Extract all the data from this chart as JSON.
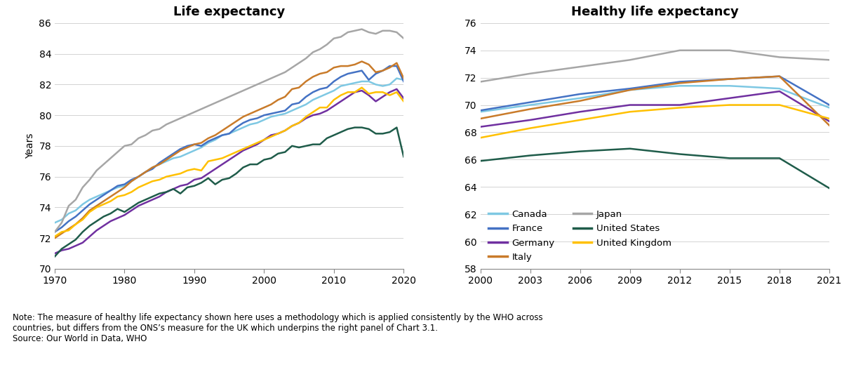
{
  "title_left": "Life expectancy",
  "title_right": "Healthy life expectancy",
  "ylabel_left": "Years",
  "note": "Note: The measure of healthy life expectancy shown here uses a methodology which is applied consistently by the WHO across\ncountries, but differs from the ONS’s measure for the UK which underpins the right panel of Chart 3.1.\nSource: Our World in Data, WHO",
  "colors": {
    "Canada": "#7ec8e3",
    "France": "#4472c4",
    "Germany": "#7030a0",
    "Italy": "#c97b2a",
    "Japan": "#a6a6a6",
    "United States": "#1f5c4a",
    "United Kingdom": "#ffc000"
  },
  "le_years": [
    1970,
    1971,
    1972,
    1973,
    1974,
    1975,
    1976,
    1977,
    1978,
    1979,
    1980,
    1981,
    1982,
    1983,
    1984,
    1985,
    1986,
    1987,
    1988,
    1989,
    1990,
    1991,
    1992,
    1993,
    1994,
    1995,
    1996,
    1997,
    1998,
    1999,
    2000,
    2001,
    2002,
    2003,
    2004,
    2005,
    2006,
    2007,
    2008,
    2009,
    2010,
    2011,
    2012,
    2013,
    2014,
    2015,
    2016,
    2017,
    2018,
    2019,
    2020
  ],
  "le_Canada": [
    73.0,
    73.2,
    73.6,
    73.8,
    74.2,
    74.5,
    74.7,
    74.9,
    75.1,
    75.3,
    75.4,
    75.7,
    76.0,
    76.3,
    76.6,
    76.8,
    77.0,
    77.2,
    77.3,
    77.5,
    77.7,
    77.9,
    78.2,
    78.4,
    78.7,
    78.8,
    79.0,
    79.2,
    79.4,
    79.5,
    79.7,
    79.9,
    80.0,
    80.1,
    80.3,
    80.5,
    80.7,
    81.0,
    81.2,
    81.4,
    81.6,
    81.9,
    82.0,
    82.1,
    82.2,
    82.2,
    82.0,
    81.9,
    82.0,
    82.4,
    82.3
  ],
  "le_France": [
    72.4,
    72.7,
    73.1,
    73.4,
    73.8,
    74.2,
    74.5,
    74.8,
    75.1,
    75.4,
    75.5,
    75.8,
    76.0,
    76.3,
    76.5,
    76.9,
    77.2,
    77.5,
    77.8,
    78.0,
    78.1,
    78.0,
    78.3,
    78.5,
    78.7,
    78.8,
    79.2,
    79.5,
    79.7,
    79.8,
    80.0,
    80.1,
    80.2,
    80.3,
    80.7,
    80.8,
    81.2,
    81.5,
    81.7,
    81.8,
    82.2,
    82.5,
    82.7,
    82.8,
    82.9,
    82.3,
    82.7,
    82.9,
    83.2,
    83.2,
    82.2
  ],
  "le_Germany": [
    71.0,
    71.2,
    71.3,
    71.5,
    71.7,
    72.1,
    72.5,
    72.8,
    73.1,
    73.3,
    73.5,
    73.8,
    74.1,
    74.3,
    74.5,
    74.7,
    75.0,
    75.2,
    75.4,
    75.5,
    75.8,
    75.9,
    76.2,
    76.5,
    76.8,
    77.1,
    77.4,
    77.7,
    77.9,
    78.1,
    78.4,
    78.7,
    78.8,
    79.0,
    79.3,
    79.5,
    79.8,
    80.0,
    80.1,
    80.3,
    80.6,
    80.9,
    81.2,
    81.5,
    81.6,
    81.3,
    80.9,
    81.2,
    81.5,
    81.7,
    81.1
  ],
  "le_Italy": [
    72.0,
    72.3,
    72.6,
    72.9,
    73.3,
    73.8,
    74.1,
    74.4,
    74.7,
    75.0,
    75.3,
    75.7,
    76.0,
    76.3,
    76.6,
    76.8,
    77.1,
    77.4,
    77.7,
    77.9,
    78.1,
    78.2,
    78.5,
    78.7,
    79.0,
    79.3,
    79.6,
    79.9,
    80.1,
    80.3,
    80.5,
    80.7,
    81.0,
    81.2,
    81.7,
    81.8,
    82.2,
    82.5,
    82.7,
    82.8,
    83.1,
    83.2,
    83.2,
    83.3,
    83.5,
    83.3,
    82.8,
    82.9,
    83.1,
    83.4,
    82.4
  ],
  "le_Japan": [
    72.4,
    73.0,
    74.1,
    74.5,
    75.3,
    75.8,
    76.4,
    76.8,
    77.2,
    77.6,
    78.0,
    78.1,
    78.5,
    78.7,
    79.0,
    79.1,
    79.4,
    79.6,
    79.8,
    80.0,
    80.2,
    80.4,
    80.6,
    80.8,
    81.0,
    81.2,
    81.4,
    81.6,
    81.8,
    82.0,
    82.2,
    82.4,
    82.6,
    82.8,
    83.1,
    83.4,
    83.7,
    84.1,
    84.3,
    84.6,
    85.0,
    85.1,
    85.4,
    85.5,
    85.6,
    85.4,
    85.3,
    85.5,
    85.5,
    85.4,
    85.0
  ],
  "le_UnitedStates": [
    70.8,
    71.3,
    71.6,
    71.9,
    72.4,
    72.8,
    73.1,
    73.4,
    73.6,
    73.9,
    73.7,
    74.0,
    74.3,
    74.5,
    74.7,
    74.9,
    75.0,
    75.2,
    74.9,
    75.3,
    75.4,
    75.6,
    75.9,
    75.5,
    75.8,
    75.9,
    76.2,
    76.6,
    76.8,
    76.8,
    77.1,
    77.2,
    77.5,
    77.6,
    78.0,
    77.9,
    78.0,
    78.1,
    78.1,
    78.5,
    78.7,
    78.9,
    79.1,
    79.2,
    79.2,
    79.1,
    78.8,
    78.8,
    78.9,
    79.2,
    77.3
  ],
  "le_UnitedKingdom": [
    72.1,
    72.4,
    72.5,
    72.9,
    73.2,
    73.7,
    74.0,
    74.2,
    74.4,
    74.7,
    74.8,
    75.0,
    75.3,
    75.5,
    75.7,
    75.8,
    76.0,
    76.1,
    76.2,
    76.4,
    76.5,
    76.4,
    77.0,
    77.1,
    77.2,
    77.4,
    77.6,
    77.8,
    78.0,
    78.2,
    78.4,
    78.6,
    78.8,
    79.0,
    79.3,
    79.5,
    79.9,
    80.2,
    80.5,
    80.5,
    81.0,
    81.3,
    81.5,
    81.5,
    81.8,
    81.4,
    81.5,
    81.5,
    81.3,
    81.5,
    80.9
  ],
  "hle_years": [
    2000,
    2003,
    2006,
    2009,
    2012,
    2015,
    2018,
    2021
  ],
  "hle_Canada": [
    69.5,
    70.0,
    70.5,
    71.1,
    71.4,
    71.4,
    71.2,
    69.8
  ],
  "hle_France": [
    69.6,
    70.2,
    70.8,
    71.2,
    71.7,
    71.9,
    72.1,
    70.0
  ],
  "hle_Germany": [
    68.4,
    68.9,
    69.5,
    70.0,
    70.0,
    70.5,
    71.0,
    68.8
  ],
  "hle_Italy": [
    69.0,
    69.7,
    70.3,
    71.1,
    71.6,
    71.9,
    72.1,
    68.5
  ],
  "hle_Japan": [
    71.7,
    72.3,
    72.8,
    73.3,
    74.0,
    74.0,
    73.5,
    73.3
  ],
  "hle_UnitedStates": [
    65.9,
    66.3,
    66.6,
    66.8,
    66.4,
    66.1,
    66.1,
    63.9
  ],
  "hle_UnitedKingdom": [
    67.6,
    68.3,
    68.9,
    69.5,
    69.8,
    70.0,
    70.0,
    69.0
  ],
  "le_ylim": [
    70,
    86
  ],
  "le_yticks": [
    70,
    72,
    74,
    76,
    78,
    80,
    82,
    84,
    86
  ],
  "le_xticks": [
    1970,
    1980,
    1990,
    2000,
    2010,
    2020
  ],
  "hle_ylim": [
    58,
    76
  ],
  "hle_yticks": [
    58,
    60,
    62,
    64,
    66,
    68,
    70,
    72,
    74,
    76
  ],
  "hle_xticks": [
    2000,
    2003,
    2006,
    2009,
    2012,
    2015,
    2018,
    2021
  ],
  "line_width": 1.8,
  "legend_order": [
    "Canada",
    "France",
    "Germany",
    "Italy",
    "Japan",
    "United States",
    "United Kingdom"
  ]
}
